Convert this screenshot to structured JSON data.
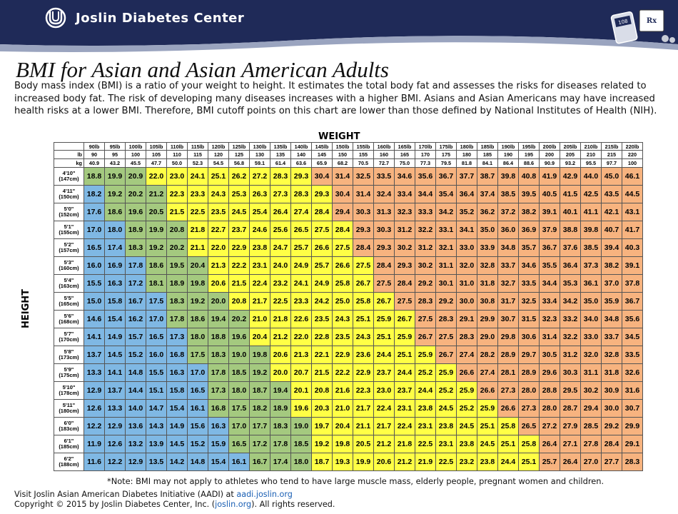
{
  "header": {
    "org_name": "Joslin Diabetes Center",
    "colors": {
      "navy": "#1f2a58",
      "accent": "#9aa4bf"
    },
    "icons": [
      "joslin-logo-icon",
      "meter-icon",
      "prescription-icon"
    ]
  },
  "title": "BMI for Asian and Asian American Adults",
  "intro": "Body mass index (BMI) is a ratio of your weight to height. It estimates the total body fat and assesses the risks for diseases related to increased body fat. The risk of developing many diseases increases with a higher BMI. Asians and Asian Americans may have increased health risks at a lower BMI. Therefore, BMI cutoff points on this chart are lower than those defined by National Institutes of Health (NIH).",
  "chart": {
    "weight_title": "WEIGHT",
    "height_title": "HEIGHT",
    "row_labels": [
      "",
      "lb",
      "kg"
    ],
    "weight_labels": [
      "90lb",
      "95lb",
      "100lb",
      "105lb",
      "110lb",
      "115lb",
      "120lb",
      "125lb",
      "130lb",
      "135lb",
      "140lb",
      "145lb",
      "150lb",
      "155lb",
      "160lb",
      "165lb",
      "170lb",
      "175lb",
      "180lb",
      "185lb",
      "190lb",
      "195lb",
      "200lb",
      "205lb",
      "210lb",
      "215lb",
      "220lb"
    ],
    "lb": [
      "90",
      "95",
      "100",
      "105",
      "110",
      "115",
      "120",
      "125",
      "130",
      "135",
      "140",
      "145",
      "150",
      "155",
      "160",
      "165",
      "170",
      "175",
      "180",
      "185",
      "190",
      "195",
      "200",
      "205",
      "210",
      "215",
      "220"
    ],
    "kg": [
      "40.9",
      "43.2",
      "45.5",
      "47.7",
      "50.0",
      "52.3",
      "54.5",
      "56.8",
      "59.1",
      "61.4",
      "63.6",
      "65.9",
      "68.2",
      "70.5",
      "72.7",
      "75.0",
      "77.3",
      "79.5",
      "81.8",
      "84.1",
      "86.4",
      "88.6",
      "90.9",
      "93.2",
      "95.5",
      "97.7",
      "100"
    ],
    "zone_colors": {
      "blue": "#7fb8e4",
      "green": "#a4c97f",
      "yellow": "#ffff45",
      "orange": "#f7b37f"
    },
    "rows": [
      {
        "ft": "4'10\"",
        "cm": "(147cm)",
        "zones": [
          0,
          3,
          11
        ],
        "values": [
          "18.8",
          "19.9",
          "20.9",
          "22.0",
          "23.0",
          "24.1",
          "25.1",
          "26.2",
          "27.2",
          "28.3",
          "29.3",
          "30.4",
          "31.4",
          "32.5",
          "33.5",
          "34.6",
          "35.6",
          "36.7",
          "37.7",
          "38.7",
          "39.8",
          "40.8",
          "41.9",
          "42.9",
          "44.0",
          "45.0",
          "46.1"
        ]
      },
      {
        "ft": "4'11\"",
        "cm": "(150cm)",
        "zones": [
          1,
          4,
          12
        ],
        "values": [
          "18.2",
          "19.2",
          "20.2",
          "21.2",
          "22.3",
          "23.3",
          "24.3",
          "25.3",
          "26.3",
          "27.3",
          "28.3",
          "29.3",
          "30.4",
          "31.4",
          "32.4",
          "33.4",
          "34.4",
          "35.4",
          "36.4",
          "37.4",
          "38.5",
          "39.5",
          "40.5",
          "41.5",
          "42.5",
          "43.5",
          "44.5"
        ]
      },
      {
        "ft": "5'0\"",
        "cm": "(152cm)",
        "zones": [
          1,
          4,
          12
        ],
        "values": [
          "17.6",
          "18.6",
          "19.6",
          "20.5",
          "21.5",
          "22.5",
          "23.5",
          "24.5",
          "25.4",
          "26.4",
          "27.4",
          "28.4",
          "29.4",
          "30.3",
          "31.3",
          "32.3",
          "33.3",
          "34.2",
          "35.2",
          "36.2",
          "37.2",
          "38.2",
          "39.1",
          "40.1",
          "41.1",
          "42.1",
          "43.1"
        ]
      },
      {
        "ft": "5'1\"",
        "cm": "(155cm)",
        "zones": [
          2,
          5,
          13
        ],
        "values": [
          "17.0",
          "18.0",
          "18.9",
          "19.9",
          "20.8",
          "21.8",
          "22.7",
          "23.7",
          "24.6",
          "25.6",
          "26.5",
          "27.5",
          "28.4",
          "29.3",
          "30.3",
          "31.2",
          "32.2",
          "33.1",
          "34.1",
          "35.0",
          "36.0",
          "36.9",
          "37.9",
          "38.8",
          "39.8",
          "40.7",
          "41.7"
        ]
      },
      {
        "ft": "5'2\"",
        "cm": "(157cm)",
        "zones": [
          2,
          5,
          13
        ],
        "values": [
          "16.5",
          "17.4",
          "18.3",
          "19.2",
          "20.2",
          "21.1",
          "22.0",
          "22.9",
          "23.8",
          "24.7",
          "25.7",
          "26.6",
          "27.5",
          "28.4",
          "29.3",
          "30.2",
          "31.2",
          "32.1",
          "33.0",
          "33.9",
          "34.8",
          "35.7",
          "36.7",
          "37.6",
          "38.5",
          "39.4",
          "40.3"
        ]
      },
      {
        "ft": "5'3\"",
        "cm": "(160cm)",
        "zones": [
          3,
          6,
          14
        ],
        "values": [
          "16.0",
          "16.9",
          "17.8",
          "18.6",
          "19.5",
          "20.4",
          "21.3",
          "22.2",
          "23.1",
          "24.0",
          "24.9",
          "25.7",
          "26.6",
          "27.5",
          "28.4",
          "29.3",
          "30.2",
          "31.1",
          "32.0",
          "32.8",
          "33.7",
          "34.6",
          "35.5",
          "36.4",
          "37.3",
          "38.2",
          "39.1"
        ]
      },
      {
        "ft": "5'4\"",
        "cm": "(163cm)",
        "zones": [
          3,
          6,
          14
        ],
        "values": [
          "15.5",
          "16.3",
          "17.2",
          "18.1",
          "18.9",
          "19.8",
          "20.6",
          "21.5",
          "22.4",
          "23.2",
          "24.1",
          "24.9",
          "25.8",
          "26.7",
          "27.5",
          "28.4",
          "29.2",
          "30.1",
          "31.0",
          "31.8",
          "32.7",
          "33.5",
          "34.4",
          "35.3",
          "36.1",
          "37.0",
          "37.8"
        ]
      },
      {
        "ft": "5'5\"",
        "cm": "(165cm)",
        "zones": [
          4,
          7,
          15
        ],
        "values": [
          "15.0",
          "15.8",
          "16.7",
          "17.5",
          "18.3",
          "19.2",
          "20.0",
          "20.8",
          "21.7",
          "22.5",
          "23.3",
          "24.2",
          "25.0",
          "25.8",
          "26.7",
          "27.5",
          "28.3",
          "29.2",
          "30.0",
          "30.8",
          "31.7",
          "32.5",
          "33.4",
          "34.2",
          "35.0",
          "35.9",
          "36.7"
        ]
      },
      {
        "ft": "5'6\"",
        "cm": "(168cm)",
        "zones": [
          4,
          8,
          16
        ],
        "values": [
          "14.6",
          "15.4",
          "16.2",
          "17.0",
          "17.8",
          "18.6",
          "19.4",
          "20.2",
          "21.0",
          "21.8",
          "22.6",
          "23.5",
          "24.3",
          "25.1",
          "25.9",
          "26.7",
          "27.5",
          "28.3",
          "29.1",
          "29.9",
          "30.7",
          "31.5",
          "32.3",
          "33.2",
          "34.0",
          "34.8",
          "35.6"
        ]
      },
      {
        "ft": "5'7\"",
        "cm": "(170cm)",
        "zones": [
          5,
          8,
          16
        ],
        "values": [
          "14.1",
          "14.9",
          "15.7",
          "16.5",
          "17.3",
          "18.0",
          "18.8",
          "19.6",
          "20.4",
          "21.2",
          "22.0",
          "22.8",
          "23.5",
          "24.3",
          "25.1",
          "25.9",
          "26.7",
          "27.5",
          "28.3",
          "29.0",
          "29.8",
          "30.6",
          "31.4",
          "32.2",
          "33.0",
          "33.7",
          "34.5"
        ]
      },
      {
        "ft": "5'8\"",
        "cm": "(173cm)",
        "zones": [
          5,
          9,
          17
        ],
        "values": [
          "13.7",
          "14.5",
          "15.2",
          "16.0",
          "16.8",
          "17.5",
          "18.3",
          "19.0",
          "19.8",
          "20.6",
          "21.3",
          "22.1",
          "22.9",
          "23.6",
          "24.4",
          "25.1",
          "25.9",
          "26.7",
          "27.4",
          "28.2",
          "28.9",
          "29.7",
          "30.5",
          "31.2",
          "32.0",
          "32.8",
          "33.5"
        ]
      },
      {
        "ft": "5'9\"",
        "cm": "(175cm)",
        "zones": [
          6,
          9,
          18
        ],
        "values": [
          "13.3",
          "14.1",
          "14.8",
          "15.5",
          "16.3",
          "17.0",
          "17.8",
          "18.5",
          "19.2",
          "20.0",
          "20.7",
          "21.5",
          "22.2",
          "22.9",
          "23.7",
          "24.4",
          "25.2",
          "25.9",
          "26.6",
          "27.4",
          "28.1",
          "28.9",
          "29.6",
          "30.3",
          "31.1",
          "31.8",
          "32.6"
        ]
      },
      {
        "ft": "5'10\"",
        "cm": "(178cm)",
        "zones": [
          6,
          10,
          19
        ],
        "values": [
          "12.9",
          "13.7",
          "14.4",
          "15.1",
          "15.8",
          "16.5",
          "17.3",
          "18.0",
          "18.7",
          "19.4",
          "20.1",
          "20.8",
          "21.6",
          "22.3",
          "23.0",
          "23.7",
          "24.4",
          "25.2",
          "25.9",
          "26.6",
          "27.3",
          "28.0",
          "28.8",
          "29.5",
          "30.2",
          "30.9",
          "31.6"
        ]
      },
      {
        "ft": "5'11\"",
        "cm": "(180cm)",
        "zones": [
          6,
          10,
          20
        ],
        "values": [
          "12.6",
          "13.3",
          "14.0",
          "14.7",
          "15.4",
          "16.1",
          "16.8",
          "17.5",
          "18.2",
          "18.9",
          "19.6",
          "20.3",
          "21.0",
          "21.7",
          "22.4",
          "23.1",
          "23.8",
          "24.5",
          "25.2",
          "25.9",
          "26.6",
          "27.3",
          "28.0",
          "28.7",
          "29.4",
          "30.0",
          "30.7"
        ]
      },
      {
        "ft": "6'0\"",
        "cm": "(183cm)",
        "zones": [
          7,
          11,
          21
        ],
        "values": [
          "12.2",
          "12.9",
          "13.6",
          "14.3",
          "14.9",
          "15.6",
          "16.3",
          "17.0",
          "17.7",
          "18.3",
          "19.0",
          "19.7",
          "20.4",
          "21.1",
          "21.7",
          "22.4",
          "23.1",
          "23.8",
          "24.5",
          "25.1",
          "25.8",
          "26.5",
          "27.2",
          "27.9",
          "28.5",
          "29.2",
          "29.9"
        ]
      },
      {
        "ft": "6'1\"",
        "cm": "(185cm)",
        "zones": [
          7,
          11,
          22
        ],
        "values": [
          "11.9",
          "12.6",
          "13.2",
          "13.9",
          "14.5",
          "15.2",
          "15.9",
          "16.5",
          "17.2",
          "17.8",
          "18.5",
          "19.2",
          "19.8",
          "20.5",
          "21.2",
          "21.8",
          "22.5",
          "23.1",
          "23.8",
          "24.5",
          "25.1",
          "25.8",
          "26.4",
          "27.1",
          "27.8",
          "28.4",
          "29.1"
        ]
      },
      {
        "ft": "6'2\"",
        "cm": "(188cm)",
        "zones": [
          8,
          11,
          22
        ],
        "values": [
          "11.6",
          "12.2",
          "12.9",
          "13.5",
          "14.2",
          "14.8",
          "15.4",
          "16.1",
          "16.7",
          "17.4",
          "18.0",
          "18.7",
          "19.3",
          "19.9",
          "20.6",
          "21.2",
          "21.9",
          "22.5",
          "23.2",
          "23.8",
          "24.4",
          "25.1",
          "25.7",
          "26.4",
          "27.0",
          "27.7",
          "28.3"
        ]
      }
    ]
  },
  "note": "*Note:  BMI may not apply to athletes who tend to have large muscle mass, elderly people, pregnant women and children.",
  "footer": {
    "line1_text": "Visit Joslin Asian American Diabetes Initiative (AADI) at ",
    "line1_link": "aadi.joslin.org",
    "line2_text": "Copyright © 2015 by Joslin Diabetes Center, Inc. (",
    "line2_link": "joslin.org",
    "line2_end": "). All rights reserved."
  }
}
